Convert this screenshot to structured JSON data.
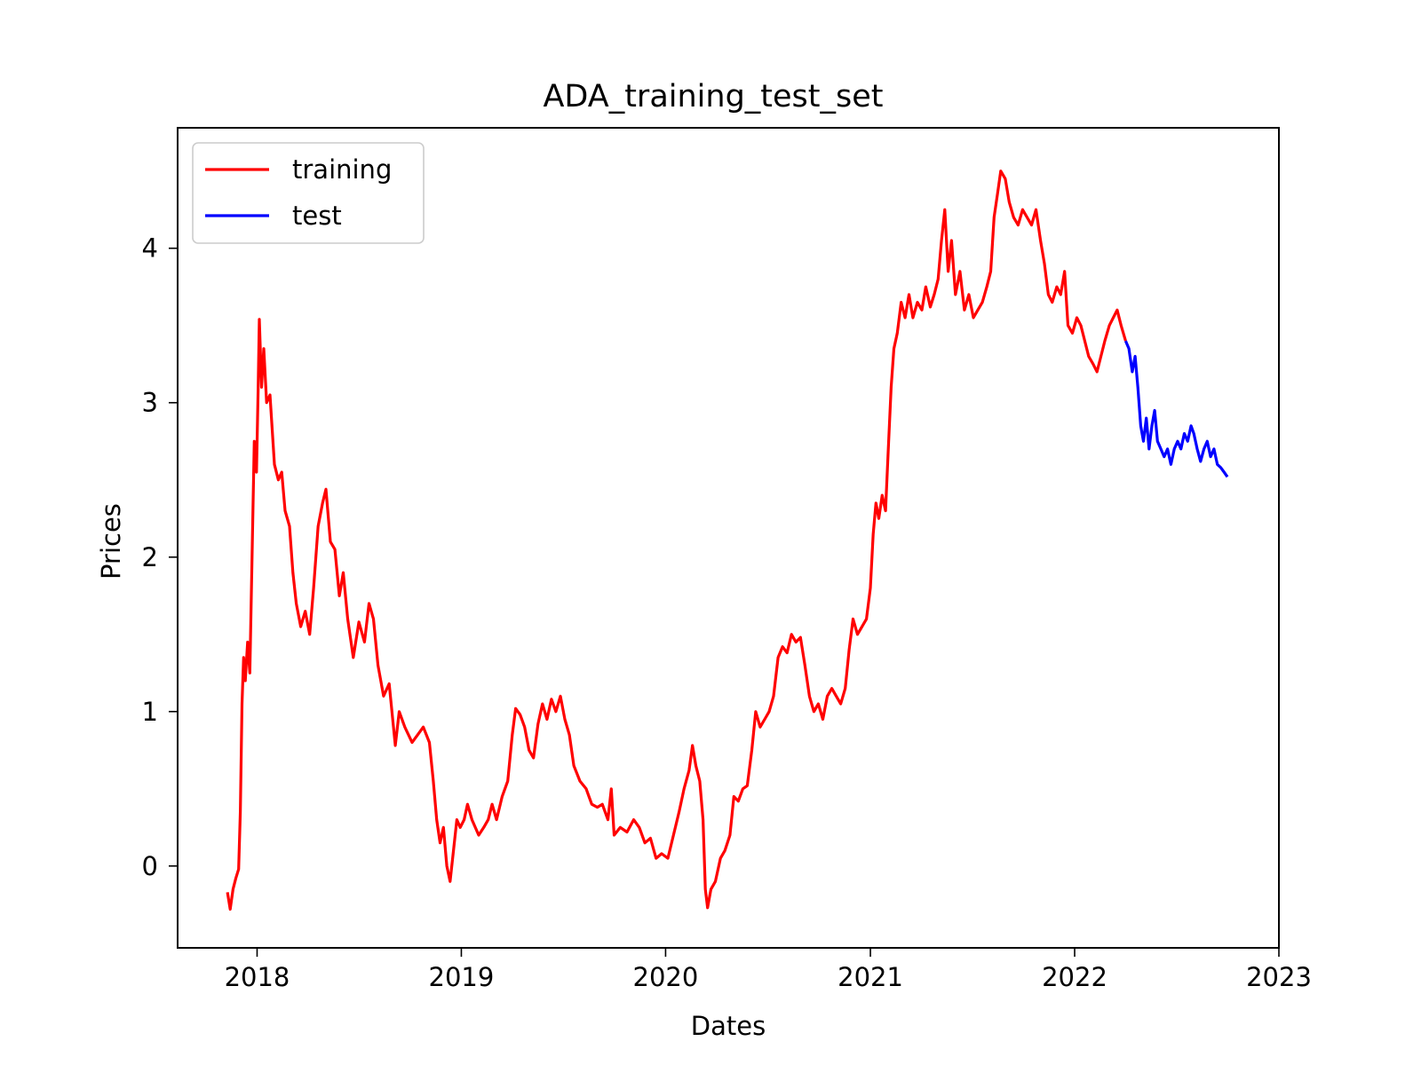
{
  "chart_data": {
    "type": "line",
    "title": "ADA_training_test_set",
    "xlabel": "Dates",
    "ylabel": "Prices",
    "x_ticks": [
      "2018",
      "2019",
      "2020",
      "2021",
      "2022",
      "2023"
    ],
    "y_ticks": [
      0,
      1,
      2,
      3,
      4
    ],
    "xlim": [
      "2017-08-12",
      "2023-01-01"
    ],
    "ylim": [
      -0.53,
      4.78
    ],
    "grid": false,
    "legend_position": "top-left",
    "series": [
      {
        "name": "training",
        "color": "#ff0000",
        "points": [
          [
            "2017-11-09",
            -0.17
          ],
          [
            "2017-11-14",
            -0.28
          ],
          [
            "2017-11-19",
            -0.15
          ],
          [
            "2017-11-24",
            -0.08
          ],
          [
            "2017-11-29",
            -0.02
          ],
          [
            "2017-12-02",
            0.35
          ],
          [
            "2017-12-05",
            1.05
          ],
          [
            "2017-12-08",
            1.35
          ],
          [
            "2017-12-11",
            1.2
          ],
          [
            "2017-12-15",
            1.45
          ],
          [
            "2017-12-19",
            1.25
          ],
          [
            "2017-12-23",
            2.0
          ],
          [
            "2017-12-27",
            2.75
          ],
          [
            "2017-12-31",
            2.55
          ],
          [
            "2018-01-03",
            3.1
          ],
          [
            "2018-01-05",
            3.54
          ],
          [
            "2018-01-09",
            3.1
          ],
          [
            "2018-01-13",
            3.35
          ],
          [
            "2018-01-18",
            3.0
          ],
          [
            "2018-01-24",
            3.05
          ],
          [
            "2018-02-01",
            2.6
          ],
          [
            "2018-02-08",
            2.5
          ],
          [
            "2018-02-14",
            2.55
          ],
          [
            "2018-02-20",
            2.3
          ],
          [
            "2018-02-28",
            2.2
          ],
          [
            "2018-03-06",
            1.9
          ],
          [
            "2018-03-12",
            1.7
          ],
          [
            "2018-03-20",
            1.55
          ],
          [
            "2018-03-28",
            1.65
          ],
          [
            "2018-04-05",
            1.5
          ],
          [
            "2018-04-12",
            1.8
          ],
          [
            "2018-04-20",
            2.2
          ],
          [
            "2018-04-28",
            2.35
          ],
          [
            "2018-05-04",
            2.44
          ],
          [
            "2018-05-12",
            2.1
          ],
          [
            "2018-05-20",
            2.05
          ],
          [
            "2018-05-28",
            1.75
          ],
          [
            "2018-06-04",
            1.9
          ],
          [
            "2018-06-12",
            1.6
          ],
          [
            "2018-06-22",
            1.35
          ],
          [
            "2018-07-02",
            1.58
          ],
          [
            "2018-07-12",
            1.45
          ],
          [
            "2018-07-20",
            1.7
          ],
          [
            "2018-07-28",
            1.6
          ],
          [
            "2018-08-05",
            1.3
          ],
          [
            "2018-08-15",
            1.1
          ],
          [
            "2018-08-25",
            1.18
          ],
          [
            "2018-09-05",
            0.78
          ],
          [
            "2018-09-12",
            1.0
          ],
          [
            "2018-09-22",
            0.9
          ],
          [
            "2018-10-05",
            0.8
          ],
          [
            "2018-10-15",
            0.85
          ],
          [
            "2018-10-25",
            0.9
          ],
          [
            "2018-11-05",
            0.8
          ],
          [
            "2018-11-12",
            0.55
          ],
          [
            "2018-11-18",
            0.3
          ],
          [
            "2018-11-24",
            0.15
          ],
          [
            "2018-11-30",
            0.25
          ],
          [
            "2018-12-06",
            0.0
          ],
          [
            "2018-12-12",
            -0.1
          ],
          [
            "2018-12-18",
            0.1
          ],
          [
            "2018-12-24",
            0.3
          ],
          [
            "2018-12-30",
            0.25
          ],
          [
            "2019-01-06",
            0.3
          ],
          [
            "2019-01-12",
            0.4
          ],
          [
            "2019-01-20",
            0.3
          ],
          [
            "2019-02-01",
            0.2
          ],
          [
            "2019-02-10",
            0.25
          ],
          [
            "2019-02-18",
            0.3
          ],
          [
            "2019-02-25",
            0.4
          ],
          [
            "2019-03-05",
            0.3
          ],
          [
            "2019-03-15",
            0.45
          ],
          [
            "2019-03-25",
            0.55
          ],
          [
            "2019-04-02",
            0.85
          ],
          [
            "2019-04-08",
            1.02
          ],
          [
            "2019-04-16",
            0.98
          ],
          [
            "2019-04-24",
            0.9
          ],
          [
            "2019-05-02",
            0.75
          ],
          [
            "2019-05-10",
            0.7
          ],
          [
            "2019-05-18",
            0.92
          ],
          [
            "2019-05-26",
            1.05
          ],
          [
            "2019-06-03",
            0.95
          ],
          [
            "2019-06-11",
            1.08
          ],
          [
            "2019-06-19",
            1.0
          ],
          [
            "2019-06-27",
            1.1
          ],
          [
            "2019-07-05",
            0.95
          ],
          [
            "2019-07-13",
            0.85
          ],
          [
            "2019-07-21",
            0.65
          ],
          [
            "2019-08-01",
            0.55
          ],
          [
            "2019-08-12",
            0.5
          ],
          [
            "2019-08-22",
            0.4
          ],
          [
            "2019-09-01",
            0.38
          ],
          [
            "2019-09-10",
            0.4
          ],
          [
            "2019-09-20",
            0.3
          ],
          [
            "2019-09-26",
            0.5
          ],
          [
            "2019-10-01",
            0.2
          ],
          [
            "2019-10-12",
            0.25
          ],
          [
            "2019-10-24",
            0.22
          ],
          [
            "2019-11-05",
            0.3
          ],
          [
            "2019-11-15",
            0.25
          ],
          [
            "2019-11-25",
            0.15
          ],
          [
            "2019-12-05",
            0.18
          ],
          [
            "2019-12-15",
            0.05
          ],
          [
            "2019-12-25",
            0.08
          ],
          [
            "2020-01-05",
            0.05
          ],
          [
            "2020-01-15",
            0.2
          ],
          [
            "2020-01-25",
            0.35
          ],
          [
            "2020-02-03",
            0.5
          ],
          [
            "2020-02-12",
            0.62
          ],
          [
            "2020-02-18",
            0.78
          ],
          [
            "2020-02-24",
            0.65
          ],
          [
            "2020-03-02",
            0.55
          ],
          [
            "2020-03-08",
            0.3
          ],
          [
            "2020-03-12",
            -0.15
          ],
          [
            "2020-03-16",
            -0.27
          ],
          [
            "2020-03-22",
            -0.15
          ],
          [
            "2020-03-30",
            -0.1
          ],
          [
            "2020-04-08",
            0.05
          ],
          [
            "2020-04-16",
            0.1
          ],
          [
            "2020-04-25",
            0.2
          ],
          [
            "2020-05-02",
            0.45
          ],
          [
            "2020-05-10",
            0.42
          ],
          [
            "2020-05-18",
            0.5
          ],
          [
            "2020-05-26",
            0.52
          ],
          [
            "2020-06-03",
            0.75
          ],
          [
            "2020-06-10",
            1.0
          ],
          [
            "2020-06-18",
            0.9
          ],
          [
            "2020-06-26",
            0.95
          ],
          [
            "2020-07-04",
            1.0
          ],
          [
            "2020-07-12",
            1.1
          ],
          [
            "2020-07-20",
            1.35
          ],
          [
            "2020-07-28",
            1.42
          ],
          [
            "2020-08-05",
            1.38
          ],
          [
            "2020-08-13",
            1.5
          ],
          [
            "2020-08-21",
            1.45
          ],
          [
            "2020-08-29",
            1.48
          ],
          [
            "2020-09-06",
            1.3
          ],
          [
            "2020-09-14",
            1.1
          ],
          [
            "2020-09-22",
            1.0
          ],
          [
            "2020-09-30",
            1.05
          ],
          [
            "2020-10-08",
            0.95
          ],
          [
            "2020-10-16",
            1.1
          ],
          [
            "2020-10-24",
            1.15
          ],
          [
            "2020-11-01",
            1.1
          ],
          [
            "2020-11-09",
            1.05
          ],
          [
            "2020-11-17",
            1.15
          ],
          [
            "2020-11-24",
            1.4
          ],
          [
            "2020-12-01",
            1.6
          ],
          [
            "2020-12-09",
            1.5
          ],
          [
            "2020-12-17",
            1.55
          ],
          [
            "2020-12-25",
            1.6
          ],
          [
            "2021-01-01",
            1.8
          ],
          [
            "2021-01-06",
            2.15
          ],
          [
            "2021-01-11",
            2.35
          ],
          [
            "2021-01-16",
            2.25
          ],
          [
            "2021-01-22",
            2.4
          ],
          [
            "2021-01-28",
            2.3
          ],
          [
            "2021-02-02",
            2.7
          ],
          [
            "2021-02-07",
            3.1
          ],
          [
            "2021-02-12",
            3.35
          ],
          [
            "2021-02-18",
            3.45
          ],
          [
            "2021-02-25",
            3.65
          ],
          [
            "2021-03-04",
            3.55
          ],
          [
            "2021-03-11",
            3.7
          ],
          [
            "2021-03-18",
            3.55
          ],
          [
            "2021-03-26",
            3.65
          ],
          [
            "2021-04-03",
            3.6
          ],
          [
            "2021-04-10",
            3.75
          ],
          [
            "2021-04-18",
            3.62
          ],
          [
            "2021-04-25",
            3.7
          ],
          [
            "2021-05-02",
            3.8
          ],
          [
            "2021-05-08",
            4.05
          ],
          [
            "2021-05-14",
            4.25
          ],
          [
            "2021-05-20",
            3.85
          ],
          [
            "2021-05-26",
            4.05
          ],
          [
            "2021-06-02",
            3.7
          ],
          [
            "2021-06-10",
            3.85
          ],
          [
            "2021-06-18",
            3.6
          ],
          [
            "2021-06-26",
            3.7
          ],
          [
            "2021-07-04",
            3.55
          ],
          [
            "2021-07-12",
            3.6
          ],
          [
            "2021-07-20",
            3.65
          ],
          [
            "2021-07-28",
            3.75
          ],
          [
            "2021-08-04",
            3.85
          ],
          [
            "2021-08-10",
            4.2
          ],
          [
            "2021-08-16",
            4.35
          ],
          [
            "2021-08-22",
            4.5
          ],
          [
            "2021-08-30",
            4.45
          ],
          [
            "2021-09-06",
            4.3
          ],
          [
            "2021-09-14",
            4.2
          ],
          [
            "2021-09-22",
            4.15
          ],
          [
            "2021-09-30",
            4.25
          ],
          [
            "2021-10-08",
            4.2
          ],
          [
            "2021-10-16",
            4.15
          ],
          [
            "2021-10-24",
            4.25
          ],
          [
            "2021-11-01",
            4.05
          ],
          [
            "2021-11-08",
            3.9
          ],
          [
            "2021-11-15",
            3.7
          ],
          [
            "2021-11-22",
            3.65
          ],
          [
            "2021-11-30",
            3.75
          ],
          [
            "2021-12-07",
            3.7
          ],
          [
            "2021-12-14",
            3.85
          ],
          [
            "2021-12-20",
            3.5
          ],
          [
            "2021-12-28",
            3.45
          ],
          [
            "2022-01-05",
            3.55
          ],
          [
            "2022-01-12",
            3.5
          ],
          [
            "2022-01-19",
            3.4
          ],
          [
            "2022-01-26",
            3.3
          ],
          [
            "2022-02-03",
            3.25
          ],
          [
            "2022-02-10",
            3.2
          ],
          [
            "2022-02-17",
            3.3
          ],
          [
            "2022-02-24",
            3.4
          ],
          [
            "2022-03-04",
            3.5
          ],
          [
            "2022-03-11",
            3.55
          ],
          [
            "2022-03-18",
            3.6
          ],
          [
            "2022-03-25",
            3.5
          ],
          [
            "2022-04-02",
            3.4
          ]
        ]
      },
      {
        "name": "test",
        "color": "#0000ff",
        "points": [
          [
            "2022-04-02",
            3.4
          ],
          [
            "2022-04-08",
            3.35
          ],
          [
            "2022-04-14",
            3.2
          ],
          [
            "2022-04-19",
            3.3
          ],
          [
            "2022-04-24",
            3.1
          ],
          [
            "2022-04-29",
            2.85
          ],
          [
            "2022-05-04",
            2.75
          ],
          [
            "2022-05-09",
            2.9
          ],
          [
            "2022-05-14",
            2.7
          ],
          [
            "2022-05-19",
            2.85
          ],
          [
            "2022-05-24",
            2.95
          ],
          [
            "2022-05-29",
            2.75
          ],
          [
            "2022-06-04",
            2.7
          ],
          [
            "2022-06-10",
            2.65
          ],
          [
            "2022-06-16",
            2.7
          ],
          [
            "2022-06-22",
            2.6
          ],
          [
            "2022-06-28",
            2.7
          ],
          [
            "2022-07-04",
            2.75
          ],
          [
            "2022-07-10",
            2.7
          ],
          [
            "2022-07-16",
            2.8
          ],
          [
            "2022-07-22",
            2.75
          ],
          [
            "2022-07-28",
            2.85
          ],
          [
            "2022-08-02",
            2.8
          ],
          [
            "2022-08-08",
            2.7
          ],
          [
            "2022-08-14",
            2.62
          ],
          [
            "2022-08-20",
            2.7
          ],
          [
            "2022-08-26",
            2.75
          ],
          [
            "2022-09-01",
            2.65
          ],
          [
            "2022-09-07",
            2.7
          ],
          [
            "2022-09-13",
            2.6
          ],
          [
            "2022-09-19",
            2.58
          ],
          [
            "2022-09-25",
            2.55
          ],
          [
            "2022-10-01",
            2.52
          ]
        ]
      }
    ]
  }
}
